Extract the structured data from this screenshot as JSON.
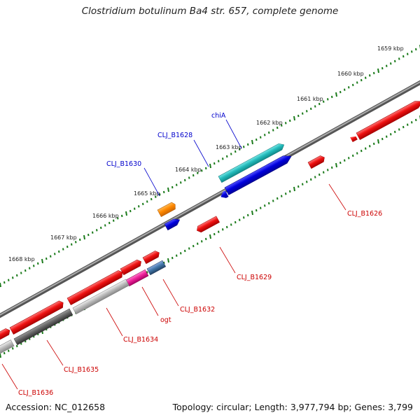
{
  "title": "Clostridium botulinum Ba4 str. 657, complete genome",
  "accession": "Accession: NC_012658",
  "topology": "Topology: circular; Length: 3,977,794 bp; Genes: 3,799",
  "kbp_labels": [
    "1659 kbp",
    "1660 kbp",
    "1661 kbp",
    "1662 kbp",
    "1663 kbp",
    "1664 kbp",
    "1665 kbp",
    "1666 kbp",
    "1667 kbp",
    "1668 kbp"
  ],
  "gene_labels": {
    "chiA": "chiA",
    "b1628": "CLJ_B1628",
    "b1630": "CLJ_B1630",
    "b1626": "CLJ_B1626",
    "b1629": "CLJ_B1629",
    "b1632": "CLJ_B1632",
    "ogt": "ogt",
    "b1634": "CLJ_B1634",
    "b1635": "CLJ_B1635",
    "b1636": "CLJ_B1636"
  },
  "colors": {
    "forward_track_ticks": "#1a7a1a",
    "backbone": "#888888",
    "red_gene": "#ee1111",
    "blue_gene": "#0000dd",
    "cyan_gene": "#22bbbb",
    "orange_gene": "#ff8800",
    "magenta_gene": "#ee2299",
    "steel_gene": "#4477aa",
    "gray_gene": "#bbbbbb",
    "dark_gray_gene": "#666666",
    "label_red": "#cc0000",
    "label_blue": "#0000cc"
  }
}
